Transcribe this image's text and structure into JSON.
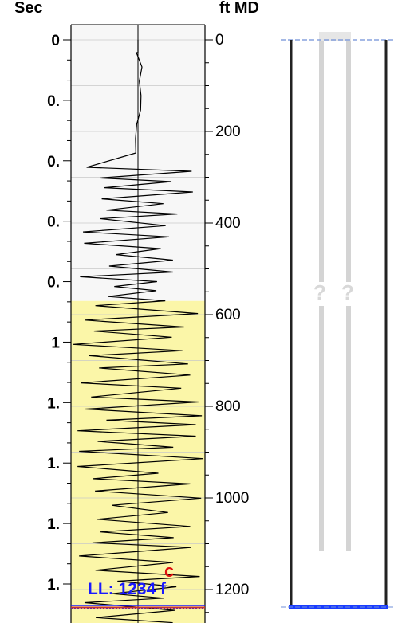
{
  "headers": {
    "left": "Sec",
    "right": "ft MD"
  },
  "colors": {
    "track_upper": "#f7f7f7",
    "track_lower": "#fbf6a8",
    "trace": "#000000",
    "grid": "#c8c8c8",
    "marker_red": "#c83030",
    "marker_blue": "#1a1aff",
    "casing_dash": "#6f8fd8",
    "casing_wall": "#222222",
    "pipe_gray": "#d4d4d4",
    "casing_bottom": "#1a3cff"
  },
  "time_axis": {
    "labels": [
      "0",
      "0.",
      "0.",
      "0.",
      "0.",
      "1",
      "1.",
      "1.",
      "1.",
      "1."
    ],
    "ticks_per_label": 3
  },
  "depth_axis": {
    "min": 0,
    "max": 1250,
    "labels": [
      "0",
      "200",
      "400",
      "600",
      "800",
      "1000",
      "1200"
    ],
    "values": [
      0,
      200,
      400,
      600,
      800,
      1000,
      1200
    ],
    "minor_step": 50
  },
  "track": {
    "yellow_from_depth": 570,
    "ll_depth": 1234,
    "ll_label": "LL: 1234 f",
    "c_label": "c"
  },
  "well": {
    "question_marks": [
      "?",
      "?"
    ]
  }
}
